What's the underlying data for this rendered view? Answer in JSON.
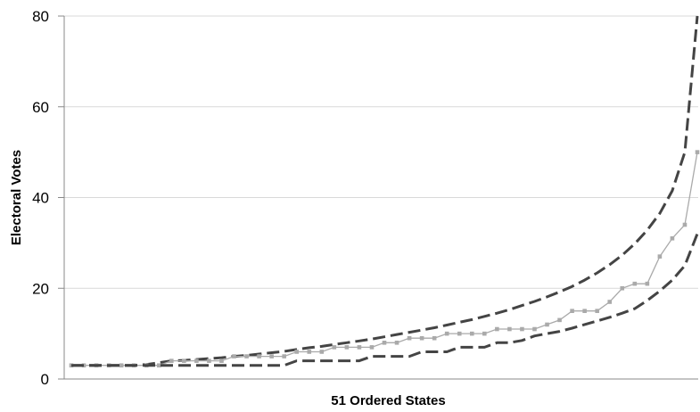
{
  "chart_data": {
    "type": "line",
    "title": "",
    "xlabel": "51 Ordered States",
    "ylabel": "Electoral Votes",
    "ylim": [
      0,
      80
    ],
    "yticks": [
      "0",
      "20",
      "40",
      "60",
      "80"
    ],
    "x": [
      1,
      2,
      3,
      4,
      5,
      6,
      7,
      8,
      9,
      10,
      11,
      12,
      13,
      14,
      15,
      16,
      17,
      18,
      19,
      20,
      21,
      22,
      23,
      24,
      25,
      26,
      27,
      28,
      29,
      30,
      31,
      32,
      33,
      34,
      35,
      36,
      37,
      38,
      39,
      40,
      41,
      42,
      43,
      44,
      45,
      46,
      47,
      48,
      49,
      50,
      51
    ],
    "grid": true,
    "legend": "none",
    "series": [
      {
        "style": "dashed-upper",
        "color": "#444444",
        "values": [
          3,
          3,
          3,
          3,
          3,
          3,
          3.2,
          3.6,
          4,
          4.1,
          4.3,
          4.5,
          4.7,
          5,
          5.2,
          5.5,
          5.8,
          6.1,
          6.5,
          6.9,
          7.2,
          7.6,
          8,
          8.4,
          8.8,
          9.3,
          9.8,
          10.3,
          10.8,
          11.3,
          11.9,
          12.5,
          13.1,
          13.8,
          14.5,
          15.3,
          16.2,
          17.1,
          18.1,
          19.2,
          20.4,
          21.8,
          23.4,
          25.2,
          27.3,
          29.8,
          32.8,
          36.5,
          41.5,
          50,
          80
        ]
      },
      {
        "style": "markers",
        "color": "#aaaaaa",
        "values": [
          3,
          3,
          3,
          3,
          3,
          3,
          3,
          3,
          4,
          4,
          4,
          4,
          4,
          5,
          5,
          5,
          5,
          5,
          6,
          6,
          6,
          7,
          7,
          7,
          7,
          8,
          8,
          9,
          9,
          9,
          10,
          10,
          10,
          10,
          11,
          11,
          11,
          11,
          12,
          13,
          15,
          15,
          15,
          17,
          20,
          21,
          21,
          27,
          31,
          34,
          50
        ]
      },
      {
        "style": "dashed-lower",
        "color": "#444444",
        "values": [
          3,
          3,
          3,
          3,
          3,
          3,
          3,
          3,
          3,
          3,
          3,
          3,
          3,
          3,
          3,
          3,
          3,
          3,
          4,
          4,
          4,
          4,
          4,
          4,
          5,
          5,
          5,
          5,
          6,
          6,
          6,
          7,
          7,
          7,
          8,
          8,
          8.5,
          9.5,
          10,
          10.5,
          11.2,
          12,
          12.8,
          13.6,
          14.5,
          15.5,
          17.3,
          19.4,
          21.8,
          25,
          32
        ]
      }
    ]
  }
}
